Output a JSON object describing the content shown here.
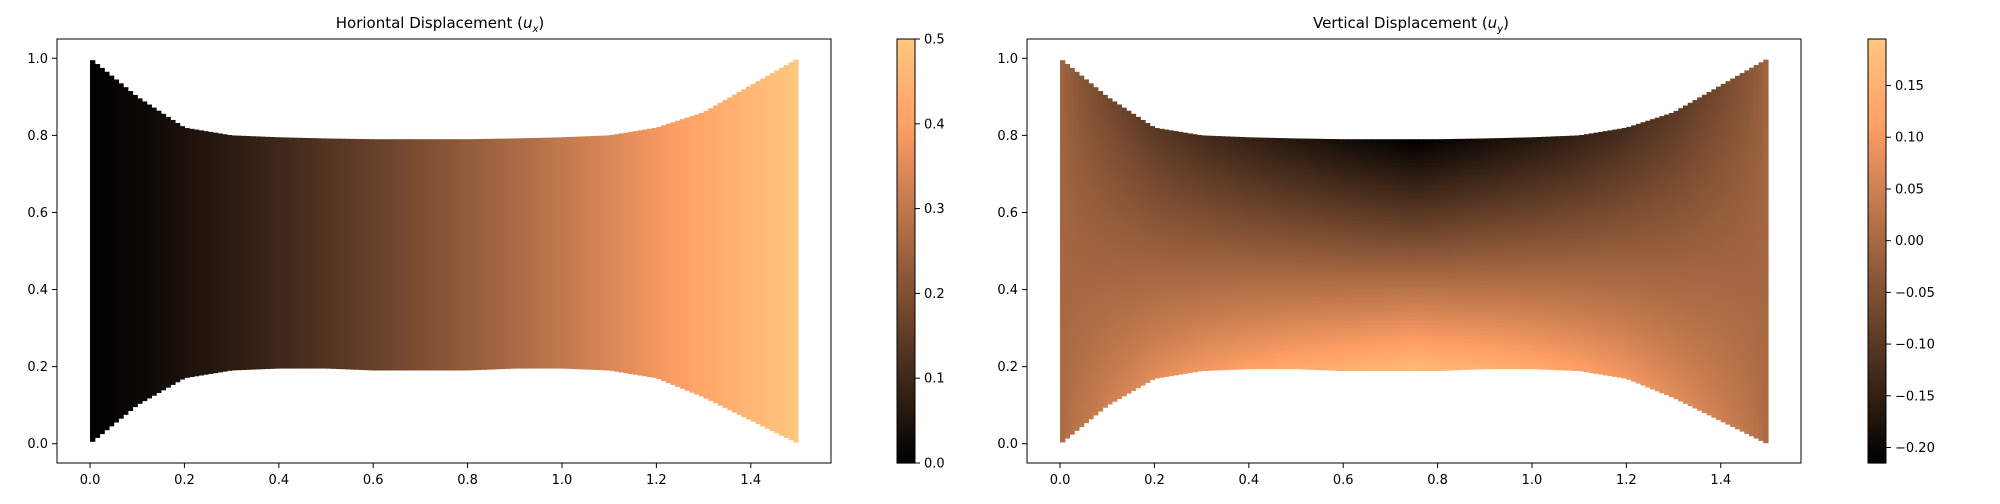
{
  "chart_data": [
    {
      "type": "heatmap",
      "title": "Horiontal Displacement (",
      "title_var": "u",
      "title_sub": "x",
      "title_end": ")",
      "xlabel": "",
      "ylabel": "",
      "xlim": [
        -0.07,
        1.57
      ],
      "ylim": [
        -0.05,
        1.05
      ],
      "xticks": [
        0.0,
        0.2,
        0.4,
        0.6,
        0.8,
        1.0,
        1.2,
        1.4
      ],
      "xticklabels": [
        "0.0",
        "0.2",
        "0.4",
        "0.6",
        "0.8",
        "1.0",
        "1.2",
        "1.4"
      ],
      "yticks": [
        0.0,
        0.2,
        0.4,
        0.6,
        0.8,
        1.0
      ],
      "yticklabels": [
        "0.0",
        "0.2",
        "0.4",
        "0.6",
        "0.8",
        "1.0"
      ],
      "colormap": "copper",
      "colorbar": {
        "range": [
          0.0,
          0.5
        ],
        "ticks": [
          0.0,
          0.1,
          0.2,
          0.3,
          0.4,
          0.5
        ],
        "ticklabels": [
          "0.0",
          "0.1",
          "0.2",
          "0.3",
          "0.4",
          "0.5"
        ]
      },
      "domain_top": {
        "x": [
          0.0,
          0.1,
          0.2,
          0.3,
          0.4,
          0.5,
          0.6,
          0.7,
          0.8,
          0.9,
          1.0,
          1.1,
          1.2,
          1.3,
          1.4,
          1.5
        ],
        "y": [
          1.0,
          0.9,
          0.82,
          0.8,
          0.795,
          0.792,
          0.79,
          0.79,
          0.79,
          0.792,
          0.795,
          0.8,
          0.82,
          0.86,
          0.93,
          1.0
        ]
      },
      "domain_bottom": {
        "x": [
          0.0,
          0.1,
          0.2,
          0.3,
          0.4,
          0.5,
          0.6,
          0.7,
          0.8,
          0.9,
          1.0,
          1.1,
          1.2,
          1.3,
          1.4,
          1.5
        ],
        "y": [
          0.0,
          0.1,
          0.17,
          0.19,
          0.195,
          0.195,
          0.19,
          0.19,
          0.19,
          0.195,
          0.195,
          0.19,
          0.17,
          0.12,
          0.06,
          0.0
        ]
      },
      "field": "ux"
    },
    {
      "type": "heatmap",
      "title": "Vertical Displacement (",
      "title_var": "u",
      "title_sub": "y",
      "title_end": ")",
      "xlabel": "",
      "ylabel": "",
      "xlim": [
        -0.07,
        1.57
      ],
      "ylim": [
        -0.05,
        1.05
      ],
      "xticks": [
        0.0,
        0.2,
        0.4,
        0.6,
        0.8,
        1.0,
        1.2,
        1.4
      ],
      "xticklabels": [
        "0.0",
        "0.2",
        "0.4",
        "0.6",
        "0.8",
        "1.0",
        "1.2",
        "1.4"
      ],
      "yticks": [
        0.0,
        0.2,
        0.4,
        0.6,
        0.8,
        1.0
      ],
      "yticklabels": [
        "0.0",
        "0.2",
        "0.4",
        "0.6",
        "0.8",
        "1.0"
      ],
      "colormap": "copper",
      "colorbar": {
        "range": [
          -0.215,
          0.195
        ],
        "ticks": [
          -0.2,
          -0.15,
          -0.1,
          -0.05,
          0.0,
          0.05,
          0.1,
          0.15
        ],
        "ticklabels": [
          "−0.20",
          "−0.15",
          "−0.10",
          "−0.05",
          "0.00",
          "0.05",
          "0.10",
          "0.15"
        ]
      },
      "domain_top": {
        "x": [
          0.0,
          0.1,
          0.2,
          0.3,
          0.4,
          0.5,
          0.6,
          0.7,
          0.8,
          0.9,
          1.0,
          1.1,
          1.2,
          1.3,
          1.4,
          1.5
        ],
        "y": [
          1.0,
          0.9,
          0.82,
          0.8,
          0.795,
          0.792,
          0.79,
          0.79,
          0.79,
          0.792,
          0.795,
          0.8,
          0.82,
          0.86,
          0.93,
          1.0
        ]
      },
      "domain_bottom": {
        "x": [
          0.0,
          0.1,
          0.2,
          0.3,
          0.4,
          0.5,
          0.6,
          0.7,
          0.8,
          0.9,
          1.0,
          1.1,
          1.2,
          1.3,
          1.4,
          1.5
        ],
        "y": [
          0.0,
          0.1,
          0.17,
          0.19,
          0.195,
          0.195,
          0.19,
          0.19,
          0.19,
          0.195,
          0.195,
          0.19,
          0.17,
          0.12,
          0.06,
          0.0
        ]
      },
      "field": "uy"
    }
  ]
}
